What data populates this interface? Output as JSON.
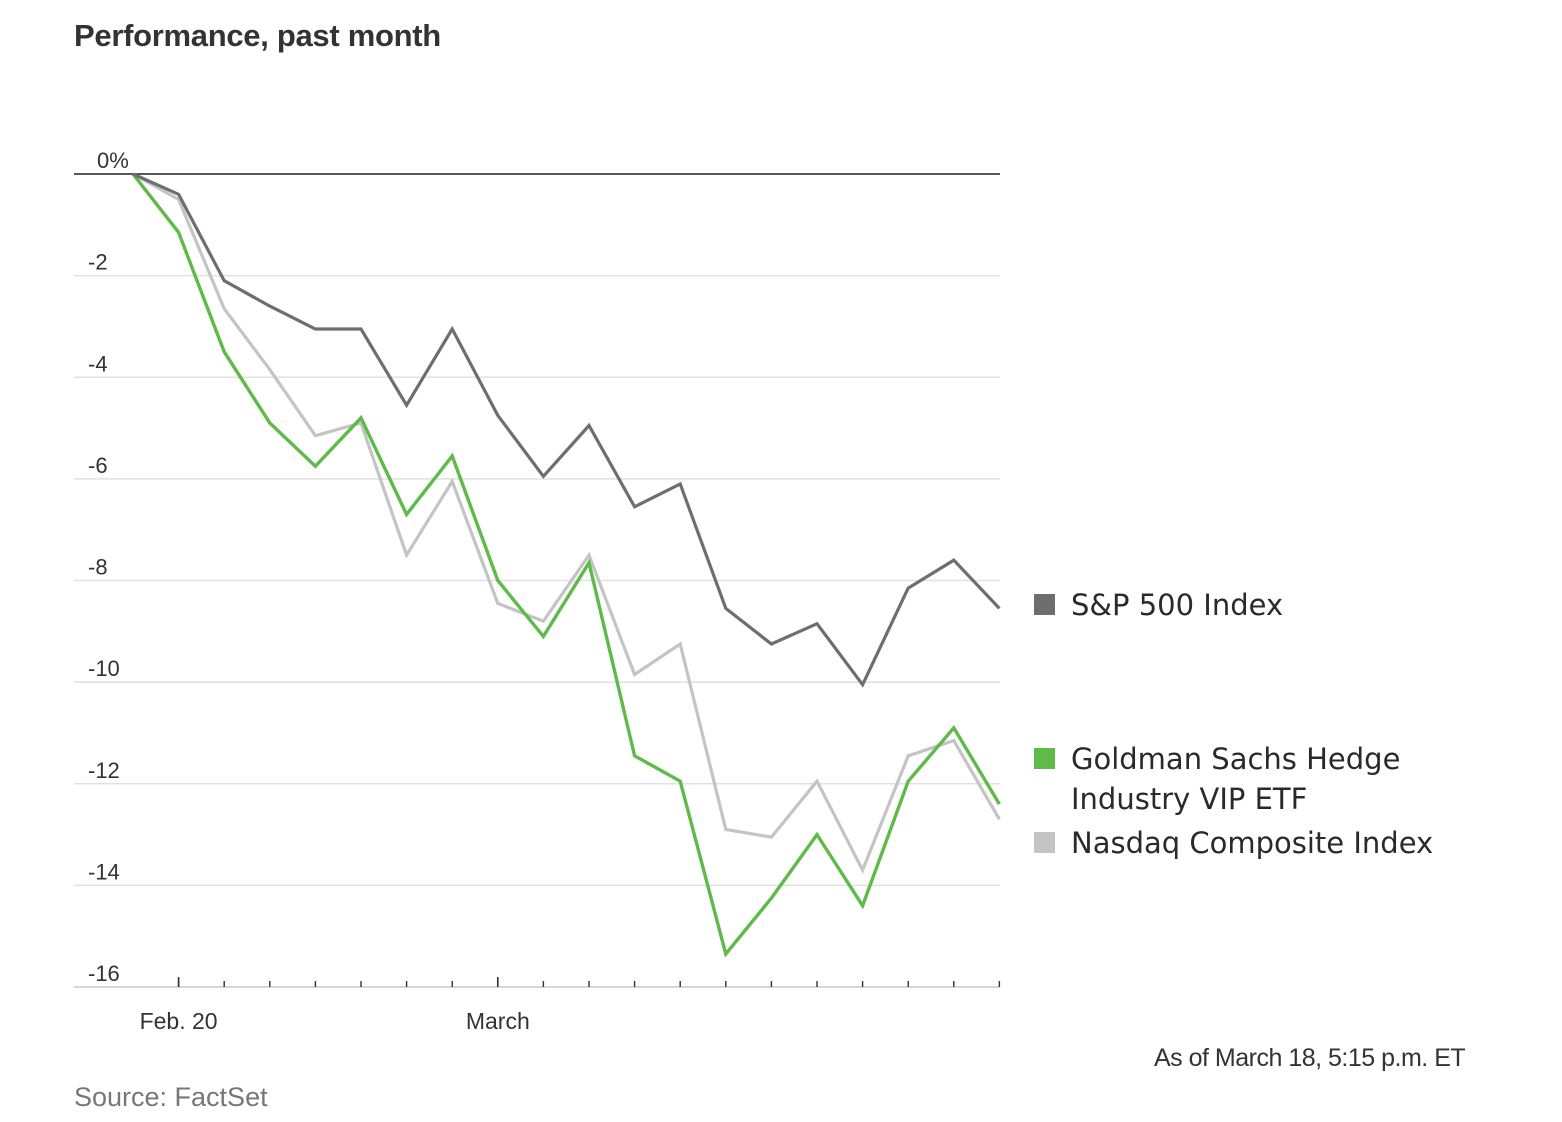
{
  "title": "Performance, past month",
  "as_of": "As of March 18, 5:15 p.m. ET",
  "source": "Source: FactSet",
  "colors": {
    "sp500": "#6e6e6e",
    "goldman": "#5fba4a",
    "nasdaq": "#c4c4c4",
    "gridline": "#e1e1e1",
    "zeroline": "#222222"
  },
  "chart_data": {
    "type": "line",
    "title": "Performance, past month",
    "ylabel": "",
    "xlabel": "",
    "ylim": [
      -16,
      0
    ],
    "y_ticks": [
      0,
      -2,
      -4,
      -6,
      -8,
      -10,
      -12,
      -14,
      -16
    ],
    "y_tick_labels": [
      "0%",
      "-2",
      "-4",
      "-6",
      "-8",
      "-10",
      "-12",
      "-14",
      "-16"
    ],
    "x_tick_labels": [
      {
        "label": "Feb. 20",
        "index": 1
      },
      {
        "label": "March",
        "index": 8
      }
    ],
    "grid": true,
    "legend_position": "right",
    "series": [
      {
        "name": "S&P 500 Index",
        "key": "sp500",
        "values": [
          0,
          -0.4,
          -2.1,
          -2.6,
          -3.05,
          -3.05,
          -4.55,
          -3.05,
          -4.75,
          -5.95,
          -4.95,
          -6.55,
          -6.1,
          -8.55,
          -9.25,
          -8.85,
          -10.05,
          -8.15,
          -7.6,
          -8.55
        ]
      },
      {
        "name": "Goldman Sachs Hedge Industry VIP ETF",
        "key": "goldman",
        "values": [
          0,
          -1.15,
          -3.5,
          -4.9,
          -5.75,
          -4.8,
          -6.7,
          -5.55,
          -8.0,
          -9.1,
          -7.65,
          -11.45,
          -11.95,
          -15.35,
          -14.25,
          -13.0,
          -14.4,
          -11.95,
          -10.9,
          -12.4
        ]
      },
      {
        "name": "Nasdaq Composite Index",
        "key": "nasdaq",
        "values": [
          0,
          -0.5,
          -2.65,
          -3.85,
          -5.15,
          -4.9,
          -7.5,
          -6.05,
          -8.45,
          -8.8,
          -7.5,
          -9.85,
          -9.25,
          -12.9,
          -13.05,
          -11.95,
          -13.7,
          -11.45,
          -11.15,
          -12.7
        ]
      }
    ],
    "legend": [
      {
        "label": "S&P 500 Index",
        "key": "sp500"
      },
      {
        "label": "Goldman Sachs Hedge",
        "label_line2": "Industry VIP ETF",
        "key": "goldman"
      },
      {
        "label": "Nasdaq Composite Index",
        "key": "nasdaq"
      }
    ]
  }
}
